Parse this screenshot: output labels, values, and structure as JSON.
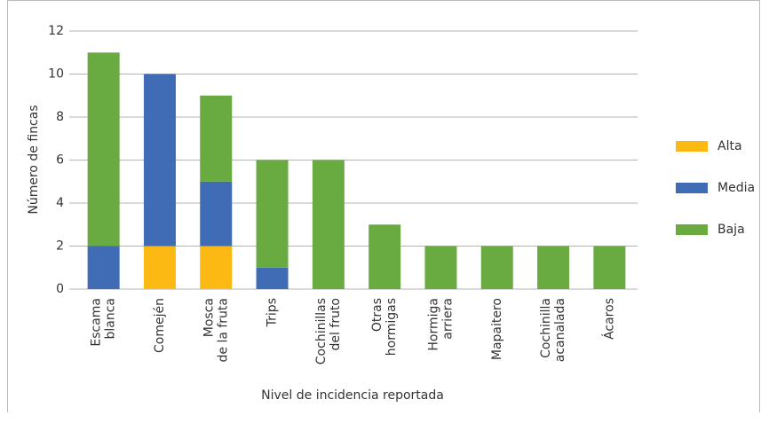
{
  "chart_data": {
    "type": "stacked-bar",
    "xlabel": "Nivel de incidencia reportada",
    "ylabel": "Número de fincas",
    "categories": [
      "Escama\nblanca",
      "Comején",
      "Mosca\nde la fruta",
      "Trips",
      "Cochinillas\ndel fruto",
      "Otras\nhormigas",
      "Hormiga\narriera",
      "Mapaitero",
      "Cochinilla\nacanalada",
      "Ácaros"
    ],
    "series": [
      {
        "name": "Alta",
        "color": "#fdb913",
        "values": [
          0,
          2,
          2,
          0,
          0,
          0,
          0,
          0,
          0,
          0
        ]
      },
      {
        "name": "Media",
        "color": "#3f6cb5",
        "values": [
          2,
          8,
          3,
          1,
          0,
          0,
          0,
          0,
          0,
          0
        ]
      },
      {
        "name": "Baja",
        "color": "#6aab41",
        "values": [
          9,
          0,
          4,
          5,
          6,
          3,
          2,
          2,
          2,
          2
        ]
      }
    ],
    "ylim": [
      0,
      12
    ],
    "yticks": [
      0,
      2,
      4,
      6,
      8,
      10,
      12
    ],
    "grid": true,
    "legend": "right"
  }
}
